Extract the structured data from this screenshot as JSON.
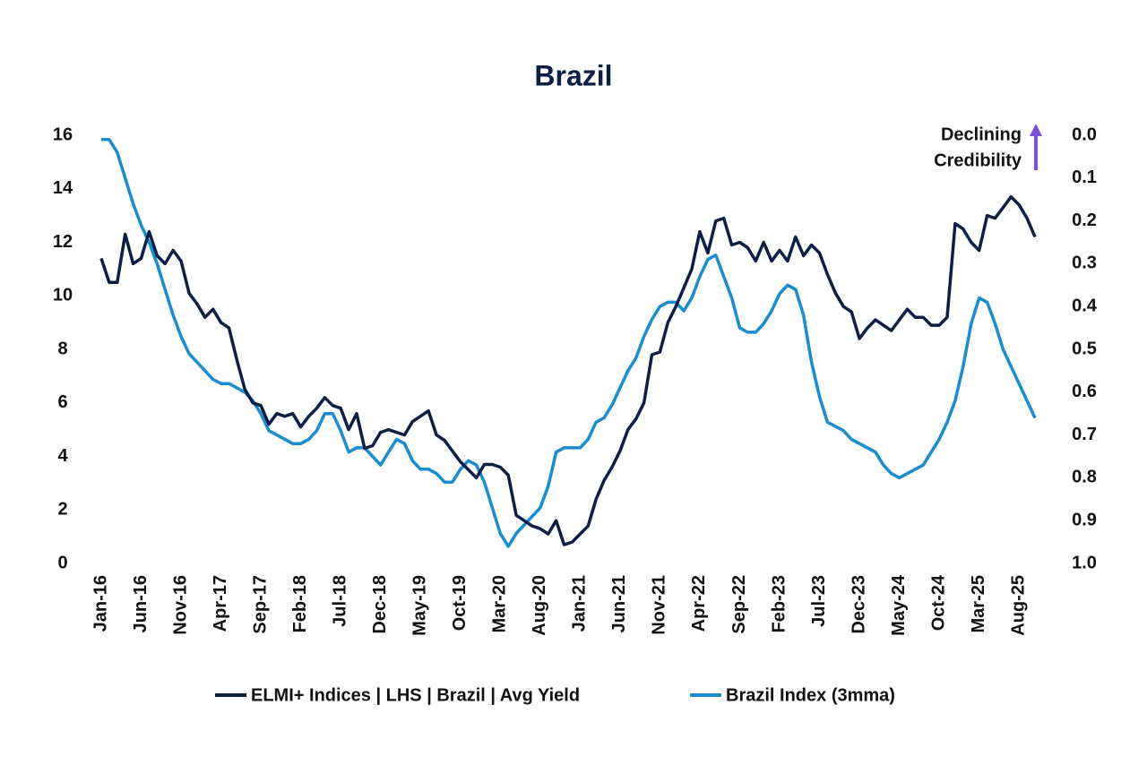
{
  "chart_data": {
    "type": "line",
    "title": "Brazil",
    "annotation": [
      "Declining",
      "Credibility"
    ],
    "categories": [
      "Jan-16",
      null,
      null,
      null,
      null,
      "Jun-16",
      null,
      null,
      null,
      null,
      "Nov-16",
      null,
      null,
      null,
      null,
      "Apr-17",
      null,
      null,
      null,
      null,
      "Sep-17",
      null,
      null,
      null,
      null,
      "Feb-18",
      null,
      null,
      null,
      null,
      "Jul-18",
      null,
      null,
      null,
      null,
      "Dec-18",
      null,
      null,
      null,
      null,
      "May-19",
      null,
      null,
      null,
      null,
      "Oct-19",
      null,
      null,
      null,
      null,
      "Mar-20",
      null,
      null,
      null,
      null,
      "Aug-20",
      null,
      null,
      null,
      null,
      "Jan-21",
      null,
      null,
      null,
      null,
      "Jun-21",
      null,
      null,
      null,
      null,
      "Nov-21",
      null,
      null,
      null,
      null,
      "Apr-22",
      null,
      null,
      null,
      null,
      "Sep-22",
      null,
      null,
      null,
      null,
      "Feb-23",
      null,
      null,
      null,
      null,
      "Jul-23",
      null,
      null,
      null,
      null,
      "Dec-23",
      null,
      null,
      null,
      null,
      "May-24",
      null,
      null,
      null,
      null,
      "Oct-24",
      null,
      null,
      null,
      null,
      "Mar-25",
      null,
      null,
      null,
      null,
      "Aug-25",
      null,
      null
    ],
    "series": [
      {
        "name": "ELMI+ Indices | LHS | Brazil | Avg Yield",
        "color": "#0d1f45",
        "axis": "y",
        "values": [
          11.4,
          10.5,
          10.5,
          12.3,
          11.2,
          11.4,
          12.4,
          11.5,
          11.2,
          11.7,
          11.3,
          10.1,
          9.7,
          9.2,
          9.5,
          9.0,
          8.8,
          7.6,
          6.5,
          6.0,
          5.9,
          5.2,
          5.6,
          5.5,
          5.6,
          5.1,
          5.5,
          5.8,
          6.2,
          5.9,
          5.8,
          5.0,
          5.6,
          4.3,
          4.4,
          4.9,
          5.0,
          4.9,
          4.8,
          5.3,
          5.5,
          5.7,
          4.8,
          4.6,
          4.2,
          3.8,
          3.5,
          3.2,
          3.7,
          3.7,
          3.6,
          3.3,
          1.8,
          1.6,
          1.4,
          1.3,
          1.1,
          1.6,
          0.7,
          0.8,
          1.1,
          1.4,
          2.4,
          3.1,
          3.6,
          4.2,
          5.0,
          5.4,
          6.0,
          7.8,
          7.9,
          9.0,
          9.6,
          10.3,
          11.0,
          12.4,
          11.6,
          12.8,
          12.9,
          11.9,
          12.0,
          11.8,
          11.3,
          12.0,
          11.3,
          11.7,
          11.3,
          12.2,
          11.5,
          11.9,
          11.6,
          10.8,
          10.1,
          9.6,
          9.4,
          8.4,
          8.8,
          9.1,
          8.9,
          8.7,
          9.1,
          9.5,
          9.2,
          9.2,
          8.9,
          8.9,
          9.2,
          12.7,
          12.5,
          12.0,
          11.7,
          13.0,
          12.9,
          13.3,
          13.7,
          13.4,
          12.9,
          12.2
        ]
      },
      {
        "name": "Brazil Index (3mma)",
        "color": "#1a8ccf",
        "axis": "y2",
        "values": [
          0.01,
          0.01,
          0.04,
          0.1,
          0.16,
          0.21,
          0.25,
          0.3,
          0.36,
          0.42,
          0.47,
          0.51,
          0.53,
          0.55,
          0.57,
          0.58,
          0.58,
          0.59,
          0.6,
          0.62,
          0.65,
          0.69,
          0.7,
          0.71,
          0.72,
          0.72,
          0.71,
          0.69,
          0.65,
          0.65,
          0.69,
          0.74,
          0.73,
          0.73,
          0.75,
          0.77,
          0.74,
          0.71,
          0.72,
          0.76,
          0.78,
          0.78,
          0.79,
          0.81,
          0.81,
          0.78,
          0.76,
          0.77,
          0.81,
          0.87,
          0.93,
          0.96,
          0.93,
          0.91,
          0.89,
          0.87,
          0.82,
          0.74,
          0.73,
          0.73,
          0.73,
          0.71,
          0.67,
          0.66,
          0.63,
          0.59,
          0.55,
          0.52,
          0.47,
          0.43,
          0.4,
          0.39,
          0.39,
          0.41,
          0.38,
          0.33,
          0.29,
          0.28,
          0.33,
          0.38,
          0.45,
          0.46,
          0.46,
          0.44,
          0.41,
          0.37,
          0.35,
          0.36,
          0.42,
          0.53,
          0.61,
          0.67,
          0.68,
          0.69,
          0.71,
          0.72,
          0.73,
          0.74,
          0.77,
          0.79,
          0.8,
          0.79,
          0.78,
          0.77,
          0.74,
          0.71,
          0.67,
          0.62,
          0.54,
          0.44,
          0.38,
          0.39,
          0.44,
          0.5,
          0.54,
          0.58,
          0.62,
          0.66
        ]
      }
    ],
    "ylim": [
      0,
      16
    ],
    "yticks": [
      0,
      2,
      4,
      6,
      8,
      10,
      12,
      14,
      16
    ],
    "y2lim": [
      1,
      0
    ],
    "y2ticks": [
      {
        "value": 0,
        "label": "0.0"
      },
      0.1,
      0.2,
      0.3,
      0.4,
      0.5,
      0.6,
      0.7,
      0.8,
      0.9,
      {
        "value": 1,
        "label": "1.0"
      }
    ],
    "grid": false
  }
}
